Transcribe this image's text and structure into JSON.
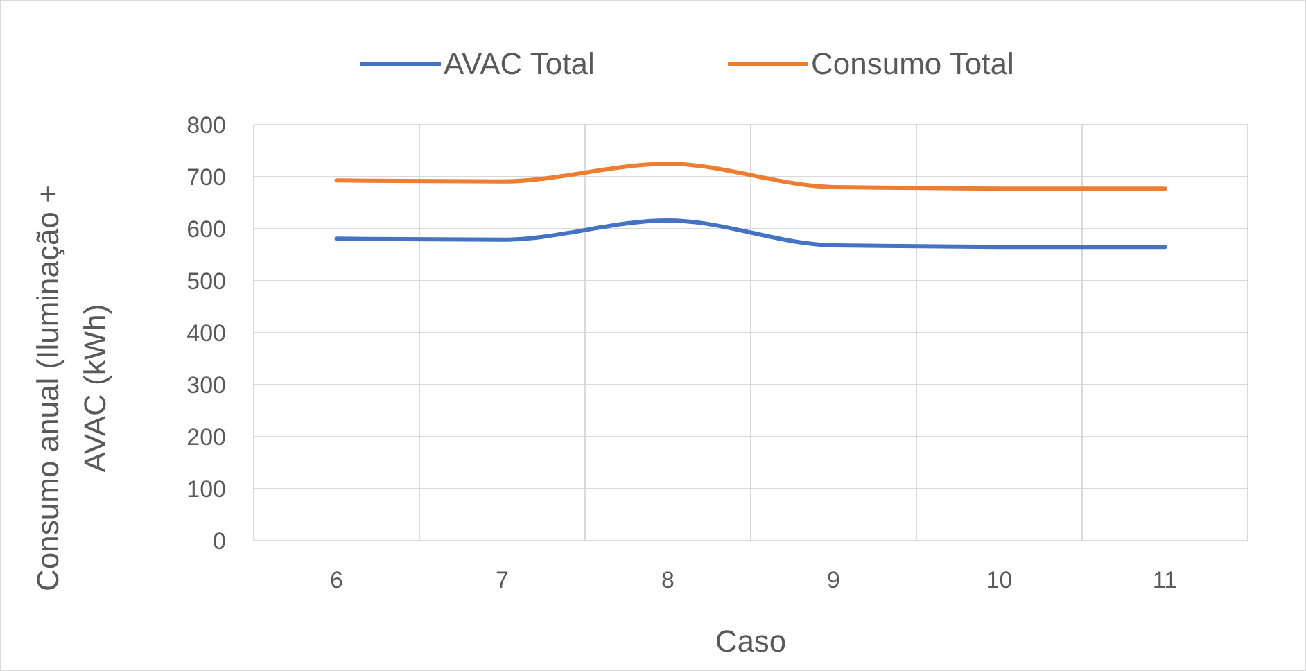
{
  "chart_data": {
    "type": "line",
    "xlabel": "Caso",
    "ylabel": "Consumo anual (Iluminação + AVAC (kWh)",
    "categories": [
      "6",
      "7",
      "8",
      "9",
      "10",
      "11"
    ],
    "series": [
      {
        "name": "AVAC Total",
        "color": "#4472c4",
        "values": [
          581,
          579,
          616,
          568,
          565,
          565
        ]
      },
      {
        "name": "Consumo Total",
        "color": "#ed7d31",
        "values": [
          693,
          691,
          725,
          680,
          677,
          677
        ]
      }
    ],
    "ylim": [
      0,
      800
    ],
    "yticks": [
      0,
      100,
      200,
      300,
      400,
      500,
      600,
      700,
      800
    ],
    "grid": true,
    "legend": "top",
    "marker": "none",
    "line_style": "solid"
  }
}
